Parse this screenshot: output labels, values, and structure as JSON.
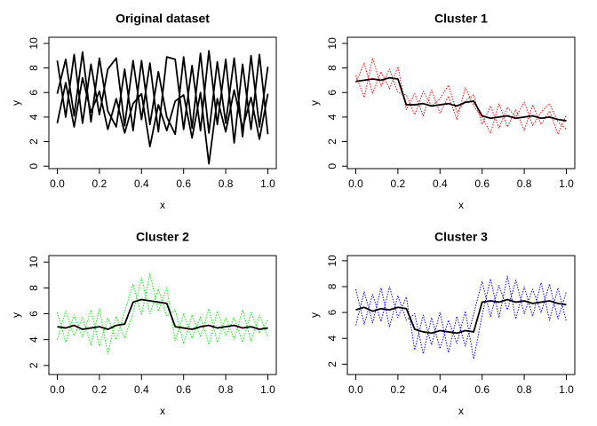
{
  "chart_data": [
    {
      "type": "line",
      "title": "Original dataset",
      "xlabel": "x",
      "ylabel": "y",
      "xlim": [
        -0.04,
        1.04
      ],
      "ylim": [
        -0.2,
        10.5
      ],
      "xticks": [
        {
          "value": 0,
          "label": "0.0"
        },
        {
          "value": 0.2,
          "label": "0.2"
        },
        {
          "value": 0.4,
          "label": "0.4"
        },
        {
          "value": 0.6,
          "label": "0.6"
        },
        {
          "value": 0.8,
          "label": "0.8"
        },
        {
          "value": 1,
          "label": "1.0"
        }
      ],
      "yticks": [
        0,
        2,
        4,
        6,
        8,
        10
      ],
      "x": [
        0,
        0.04,
        0.08,
        0.12,
        0.16,
        0.2,
        0.24,
        0.28,
        0.32,
        0.36,
        0.4,
        0.44,
        0.48,
        0.52,
        0.56,
        0.6,
        0.64,
        0.68,
        0.72,
        0.76,
        0.8,
        0.84,
        0.88,
        0.92,
        0.96,
        1
      ],
      "series": [
        {
          "color": "#000000",
          "style": "solid",
          "values": [
            5.9,
            8.7,
            4.1,
            9.3,
            3.6,
            8.8,
            4.5,
            3.2,
            7.9,
            2.9,
            8.6,
            3.4,
            7.7,
            4.0,
            2.6,
            8.9,
            3.1,
            9.2,
            2.7,
            8.5,
            3.5,
            8.8,
            2.4,
            9.0,
            3.2,
            8.1
          ]
        },
        {
          "color": "#000000",
          "style": "solid",
          "values": [
            8.6,
            4.0,
            9.1,
            3.5,
            8.3,
            4.2,
            7.9,
            8.8,
            3.3,
            8.6,
            3.8,
            8.4,
            2.8,
            8.9,
            8.7,
            3.0,
            8.2,
            2.9,
            9.4,
            3.4,
            8.7,
            1.9,
            8.3,
            3.0,
            9.1,
            2.6
          ]
        },
        {
          "color": "#000000",
          "style": "solid",
          "values": [
            3.5,
            6.8,
            3.2,
            7.2,
            4.4,
            6.1,
            3.0,
            5.5,
            2.7,
            5.1,
            5.9,
            1.6,
            5.0,
            2.9,
            5.3,
            5.8,
            2.3,
            6.0,
            0.2,
            5.5,
            2.8,
            6.2,
            3.1,
            5.6,
            2.2,
            5.9
          ]
        }
      ]
    },
    {
      "type": "line",
      "title": "Cluster 1",
      "xlabel": "x",
      "ylabel": "y",
      "xlim": [
        -0.04,
        1.04
      ],
      "ylim": [
        -0.2,
        10.5
      ],
      "xticks": [
        {
          "value": 0,
          "label": "0.0"
        },
        {
          "value": 0.2,
          "label": "0.2"
        },
        {
          "value": 0.4,
          "label": "0.4"
        },
        {
          "value": 0.6,
          "label": "0.6"
        },
        {
          "value": 0.8,
          "label": "0.8"
        },
        {
          "value": 1,
          "label": "1.0"
        }
      ],
      "yticks": [
        0,
        2,
        4,
        6,
        8,
        10
      ],
      "x": [
        0,
        0.04,
        0.08,
        0.12,
        0.16,
        0.2,
        0.24,
        0.28,
        0.32,
        0.36,
        0.4,
        0.44,
        0.48,
        0.52,
        0.56,
        0.6,
        0.64,
        0.68,
        0.72,
        0.76,
        0.8,
        0.84,
        0.88,
        0.92,
        0.96,
        1
      ],
      "series": [
        {
          "color": "#ff0000",
          "style": "dotted",
          "values": [
            6.8,
            8.4,
            5.9,
            7.7,
            6.3,
            8.1,
            4.6,
            5.9,
            4.1,
            6.2,
            4.3,
            5.7,
            3.8,
            6.4,
            4.9,
            4.0,
            2.7,
            5.1,
            3.2,
            4.6,
            2.9,
            5.0,
            3.4,
            4.5,
            2.6,
            4.2
          ]
        },
        {
          "color": "#ff0000",
          "style": "dotted",
          "values": [
            7.4,
            5.6,
            8.8,
            6.5,
            7.9,
            6.0,
            5.8,
            4.2,
            6.1,
            4.9,
            5.5,
            6.6,
            4.4,
            5.3,
            5.8,
            3.4,
            4.9,
            3.1,
            4.8,
            4.0,
            5.2,
            3.3,
            4.4,
            5.1,
            3.6,
            3.0
          ]
        },
        {
          "color": "#000000",
          "style": "solid",
          "values": [
            6.9,
            7.0,
            7.1,
            7.0,
            7.2,
            7.1,
            5.0,
            5.0,
            5.1,
            4.9,
            5.0,
            5.1,
            4.9,
            5.2,
            5.3,
            4.1,
            3.9,
            4.0,
            4.1,
            3.9,
            4.0,
            4.1,
            3.9,
            4.0,
            3.8,
            3.7
          ]
        }
      ]
    },
    {
      "type": "line",
      "title": "Cluster 2",
      "xlabel": "x",
      "ylabel": "y",
      "xlim": [
        -0.04,
        1.04
      ],
      "ylim": [
        1.3,
        10.5
      ],
      "xticks": [
        {
          "value": 0,
          "label": "0.0"
        },
        {
          "value": 0.2,
          "label": "0.2"
        },
        {
          "value": 0.4,
          "label": "0.4"
        },
        {
          "value": 0.6,
          "label": "0.6"
        },
        {
          "value": 0.8,
          "label": "0.8"
        },
        {
          "value": 1,
          "label": "1.0"
        }
      ],
      "yticks": [
        2,
        4,
        6,
        8,
        10
      ],
      "x": [
        0,
        0.04,
        0.08,
        0.12,
        0.16,
        0.2,
        0.24,
        0.28,
        0.32,
        0.36,
        0.4,
        0.44,
        0.48,
        0.52,
        0.56,
        0.6,
        0.64,
        0.68,
        0.72,
        0.76,
        0.8,
        0.84,
        0.88,
        0.92,
        0.96,
        1
      ],
      "series": [
        {
          "color": "#00ee00",
          "style": "dotted",
          "values": [
            6.1,
            3.8,
            5.9,
            4.2,
            6.3,
            3.5,
            5.7,
            4.0,
            6.2,
            8.3,
            5.9,
            9.1,
            6.2,
            8.0,
            3.9,
            6.0,
            4.1,
            5.8,
            3.6,
            6.2,
            4.3,
            5.7,
            3.8,
            6.1,
            4.5,
            5.5
          ]
        },
        {
          "color": "#00ee00",
          "style": "dotted",
          "values": [
            4.0,
            6.2,
            4.3,
            5.7,
            3.6,
            6.4,
            2.9,
            5.8,
            4.1,
            6.1,
            8.8,
            6.0,
            7.9,
            5.8,
            6.3,
            3.7,
            5.9,
            4.2,
            6.4,
            3.8,
            5.7,
            4.0,
            6.3,
            3.9,
            5.9,
            4.2
          ]
        },
        {
          "color": "#000000",
          "style": "solid",
          "values": [
            5.0,
            4.9,
            5.1,
            4.8,
            4.9,
            5.0,
            4.8,
            5.1,
            5.2,
            6.9,
            7.1,
            7.0,
            6.9,
            6.8,
            5.0,
            4.9,
            4.8,
            5.0,
            5.1,
            4.9,
            5.0,
            5.1,
            4.9,
            5.0,
            4.8,
            4.9
          ]
        }
      ]
    },
    {
      "type": "line",
      "title": "Cluster 3",
      "xlabel": "x",
      "ylabel": "y",
      "xlim": [
        -0.04,
        1.04
      ],
      "ylim": [
        1.2,
        10.4
      ],
      "xticks": [
        {
          "value": 0,
          "label": "0.0"
        },
        {
          "value": 0.2,
          "label": "0.2"
        },
        {
          "value": 0.4,
          "label": "0.4"
        },
        {
          "value": 0.6,
          "label": "0.6"
        },
        {
          "value": 0.8,
          "label": "0.8"
        },
        {
          "value": 1,
          "label": "1.0"
        }
      ],
      "yticks": [
        2,
        4,
        6,
        8,
        10
      ],
      "x": [
        0,
        0.04,
        0.08,
        0.12,
        0.16,
        0.2,
        0.24,
        0.28,
        0.32,
        0.36,
        0.4,
        0.44,
        0.48,
        0.52,
        0.56,
        0.6,
        0.64,
        0.68,
        0.72,
        0.76,
        0.8,
        0.84,
        0.88,
        0.92,
        0.96,
        1
      ],
      "series": [
        {
          "color": "#0000ff",
          "style": "dotted",
          "values": [
            7.8,
            5.1,
            7.4,
            5.3,
            8.0,
            5.6,
            7.2,
            3.1,
            5.8,
            3.5,
            6.0,
            2.9,
            5.7,
            3.4,
            5.9,
            8.4,
            5.7,
            8.1,
            6.2,
            8.5,
            5.9,
            7.8,
            6.0,
            8.2,
            5.5,
            7.6
          ]
        },
        {
          "color": "#0000ff",
          "style": "dotted",
          "values": [
            5.0,
            7.6,
            5.2,
            7.9,
            4.9,
            7.3,
            5.4,
            5.9,
            2.8,
            5.6,
            3.2,
            5.4,
            3.6,
            6.1,
            2.4,
            5.8,
            8.6,
            5.6,
            8.8,
            5.5,
            8.0,
            5.7,
            8.3,
            5.4,
            7.9,
            5.3
          ]
        },
        {
          "color": "#000000",
          "style": "solid",
          "values": [
            6.2,
            6.4,
            6.1,
            6.3,
            6.2,
            6.4,
            6.3,
            4.7,
            4.5,
            4.4,
            4.6,
            4.5,
            4.4,
            4.6,
            4.5,
            6.8,
            6.9,
            6.8,
            7.0,
            6.8,
            6.9,
            6.7,
            6.8,
            6.9,
            6.7,
            6.6
          ]
        }
      ]
    }
  ]
}
